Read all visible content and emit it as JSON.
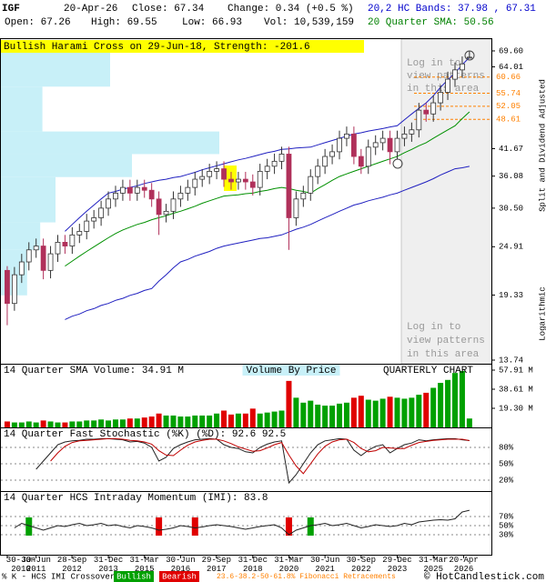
{
  "header": {
    "symbol": "IGF",
    "date": "20-Apr-26",
    "close": "Close: 67.34",
    "change": "Change: 0.34 (+0.5 %)",
    "bands": "20,2 HC Bands: 37.98 , 67.31",
    "open": "Open: 67.26",
    "high": "High: 69.55",
    "low": "Low: 66.93",
    "volume": "Vol: 10,539,159",
    "sma": "20 Quarter SMA: 50.56"
  },
  "chart_data": [
    {
      "type": "candlestick",
      "annotation": "Bullish Harami Cross on 29-Jun-18, Strength: -201.6",
      "notes": [
        "Split and Dividend Adjusted",
        "Logarithmic"
      ],
      "overlay_text": [
        "Log in to",
        "view patterns",
        "in this area"
      ],
      "log_scale": true,
      "xlim": [
        2010.25,
        2027.26
      ],
      "ylim": [
        13.48,
        74.4
      ],
      "yticks": [
        {
          "value": 69.6,
          "label": "69.60"
        },
        64.01,
        41.67,
        36.08,
        {
          "value": 30.5,
          "label": "30.50"
        },
        24.91,
        19.33,
        13.74
      ],
      "x": [
        2010.5,
        2010.75,
        2011,
        2011.25,
        2011.5,
        2011.75,
        2012,
        2012.25,
        2012.5,
        2012.75,
        2013,
        2013.25,
        2013.5,
        2013.75,
        2014,
        2014.25,
        2014.5,
        2014.75,
        2015,
        2015.25,
        2015.5,
        2015.75,
        2016,
        2016.25,
        2016.5,
        2016.75,
        2017,
        2017.25,
        2017.5,
        2017.75,
        2018,
        2018.25,
        2018.5,
        2018.75,
        2019,
        2019.25,
        2019.5,
        2019.75,
        2020,
        2020.25,
        2020.5,
        2020.75,
        2021,
        2021.25,
        2021.5,
        2021.75,
        2022,
        2022.25,
        2022.5,
        2022.75,
        2023,
        2023.25,
        2023.5,
        2023.75,
        2024,
        2024.25,
        2024.5,
        2024.75,
        2025,
        2025.25,
        2025.5,
        2025.75,
        2026,
        2026.25,
        2026.5
      ],
      "open": [
        22,
        18.5,
        21.5,
        23,
        24.5,
        25,
        22,
        24,
        25.5,
        25,
        26.5,
        27,
        28.5,
        29,
        30.5,
        32,
        33,
        34,
        33,
        34,
        33.5,
        32,
        29.5,
        30,
        32,
        33,
        34,
        35.5,
        36,
        37,
        37.5,
        35.5,
        35,
        35.5,
        35,
        34,
        37,
        38,
        39,
        40.5,
        29,
        32,
        33,
        36,
        38,
        40,
        41,
        44,
        45,
        40,
        38,
        42,
        43,
        44,
        41,
        44,
        45,
        46,
        51,
        50,
        53,
        56,
        60,
        63,
        67.26
      ],
      "high": [
        22.5,
        22.4,
        24,
        25.5,
        26,
        26,
        25,
        26.5,
        26.5,
        27.6,
        28.1,
        29.6,
        30.2,
        31.7,
        33.3,
        34.3,
        35.4,
        35.4,
        35.4,
        35.4,
        34.8,
        33.3,
        31.2,
        33.3,
        34.3,
        35.4,
        36.9,
        37.4,
        38.5,
        39,
        39,
        36.9,
        36.9,
        36.9,
        36.4,
        38.5,
        39.5,
        40.6,
        42.1,
        42.1,
        33.3,
        34.3,
        37.4,
        39.5,
        41.6,
        42.6,
        45.8,
        46.8,
        46.8,
        41.6,
        43.7,
        44.7,
        45.8,
        45.8,
        45.8,
        46.8,
        47.8,
        53,
        53,
        55.1,
        58.2,
        62.4,
        65.5,
        67.6,
        69.55
      ],
      "low": [
        16.5,
        17.8,
        20.6,
        22,
        23.5,
        21,
        21.1,
        23,
        24,
        24,
        25.4,
        25.9,
        27.4,
        27.8,
        29.3,
        30.7,
        31.7,
        31.7,
        31.7,
        32.2,
        30.7,
        26.5,
        28.3,
        28.8,
        30.7,
        31.7,
        32.6,
        34.1,
        34.6,
        35.5,
        34.1,
        33.6,
        33.6,
        33.6,
        32.6,
        32.6,
        35.5,
        36.5,
        37.4,
        24.5,
        27.8,
        30.7,
        31.7,
        34.6,
        36.5,
        38.4,
        39.4,
        42.2,
        38.4,
        36.5,
        36.5,
        40.3,
        41.3,
        38.4,
        39.4,
        42.2,
        43.2,
        44.2,
        48,
        48,
        50.9,
        53.8,
        57.6,
        60.5,
        66.93
      ],
      "close": [
        18.5,
        21.5,
        23,
        24.5,
        25,
        22,
        24,
        25.5,
        25,
        26.5,
        27,
        28.5,
        29,
        30.5,
        32,
        33,
        34,
        33,
        34,
        33.5,
        32,
        29.5,
        30,
        32,
        33,
        34,
        35.5,
        36,
        37,
        37.5,
        35.5,
        35,
        35.5,
        35,
        34,
        37,
        38,
        39,
        40.5,
        29,
        32,
        33,
        36,
        38,
        40,
        41,
        44,
        45,
        40,
        38,
        42,
        43,
        44,
        41,
        44,
        45,
        46,
        51,
        50,
        53,
        56,
        60,
        63,
        65,
        67.34
      ],
      "up_color": "#333333",
      "down_color": "#b0305a",
      "series": [
        {
          "color": "#2020c0",
          "values": [
            null,
            null,
            null,
            null,
            null,
            null,
            null,
            null,
            27,
            28,
            29,
            30,
            31,
            32,
            33,
            33.3,
            33.7,
            34,
            34.3,
            34.7,
            35,
            35.3,
            35.5,
            35.8,
            36,
            36.4,
            36.8,
            37.3,
            37.7,
            38.1,
            38.5,
            38.9,
            39.3,
            39.6,
            40,
            40.4,
            40.8,
            41.1,
            41.5,
            41.6,
            41.8,
            41.9,
            42,
            42.5,
            43,
            43.5,
            44,
            44.5,
            45,
            45.3,
            45.7,
            46,
            46.3,
            46.7,
            47,
            48.5,
            50,
            51.5,
            53,
            55,
            57.5,
            59.8,
            62,
            64.7,
            67.31
          ]
        },
        {
          "color": "#2020c0",
          "values": [
            null,
            null,
            null,
            null,
            null,
            null,
            null,
            null,
            17,
            17.3,
            17.5,
            17.8,
            18,
            18.3,
            18.5,
            18.8,
            19,
            19.3,
            19.5,
            19.8,
            20,
            20.8,
            21.5,
            22.3,
            23,
            23.3,
            23.7,
            24,
            24.3,
            24.7,
            25,
            25.2,
            25.4,
            25.6,
            25.8,
            26,
            26.1,
            26.3,
            26.5,
            26.9,
            27.3,
            27.6,
            28,
            28.5,
            29,
            29.5,
            30,
            30.5,
            31,
            31.3,
            31.7,
            32,
            32.3,
            32.7,
            33,
            33.5,
            34,
            34.5,
            35,
            35.6,
            36.3,
            36.9,
            37.5,
            37.7,
            37.98
          ]
        },
        {
          "color": "#009000",
          "values": [
            null,
            null,
            null,
            null,
            null,
            null,
            null,
            null,
            22.5,
            23.1,
            23.7,
            24.3,
            24.9,
            25.5,
            26.1,
            26.7,
            27.2,
            27.6,
            28,
            28.3,
            28.7,
            29,
            29.3,
            29.7,
            30,
            30.4,
            30.8,
            31.3,
            31.7,
            32.1,
            32.5,
            32.6,
            32.7,
            32.9,
            33,
            33.3,
            33.5,
            33.8,
            34,
            33.8,
            33.5,
            33.3,
            33,
            33.8,
            34.5,
            35.3,
            36,
            36.5,
            37,
            37.5,
            38,
            38.5,
            39,
            39.5,
            40,
            40.8,
            41.5,
            42.3,
            43,
            44,
            45,
            46,
            47,
            48.8,
            50.56
          ]
        }
      ],
      "volume_by_price": {
        "label": "Volume By Price",
        "color": "#c8f0f8",
        "price_edges": [
          73.7,
          57.7,
          45.6,
          40.5,
          35.9,
          28.3,
          24.5,
          19.3
        ],
        "values": [
          50,
          19,
          100,
          60,
          25,
          18,
          12
        ]
      },
      "fib_levels": [
        60.66,
        55.74,
        52.05,
        48.61
      ],
      "fib_color": "#ff8000"
    },
    {
      "type": "bar",
      "title": "14 Quarter SMA Volume: 34.91 M",
      "annotation": "QUARTERLY CHART",
      "ylim": [
        0,
        62.5
      ],
      "yticks": [
        {
          "value": 57.91,
          "label": "57.91 M"
        },
        {
          "value": 38.61,
          "label": "38.61 M"
        },
        {
          "value": 19.3,
          "label": "19.30 M"
        }
      ],
      "up_color": "#00a000",
      "down_color": "#e00000",
      "values": [
        6,
        5,
        5,
        6,
        5,
        7,
        6,
        5,
        5,
        6,
        6,
        7,
        7,
        8,
        7,
        8,
        8,
        9,
        9,
        10,
        11,
        14,
        12,
        12,
        11,
        11,
        12,
        12,
        12,
        14,
        17,
        13,
        14,
        14,
        19,
        14,
        15,
        16,
        17,
        47,
        30,
        25,
        27,
        23,
        22,
        22,
        24,
        25,
        30,
        32,
        28,
        27,
        29,
        31,
        30,
        29,
        30,
        33,
        35,
        40,
        45,
        48,
        55,
        57,
        9
      ]
    },
    {
      "type": "line",
      "title": "14 Quarter Fast Stochastic (%K) (%D): 92.6 92.5",
      "ylim": [
        0,
        116.7
      ],
      "yticks": [
        {
          "value": 80,
          "label": "80%"
        },
        {
          "value": 50,
          "label": "50%"
        },
        {
          "value": 20,
          "label": "20%"
        }
      ],
      "series": [
        {
          "color": "#222222",
          "values": [
            null,
            null,
            null,
            null,
            40,
            55,
            70,
            85,
            90,
            92,
            93,
            95,
            95,
            96,
            96,
            95,
            94,
            90,
            91,
            88,
            80,
            55,
            62,
            78,
            85,
            90,
            94,
            95,
            96,
            95,
            85,
            80,
            78,
            72,
            70,
            80,
            86,
            90,
            92,
            15,
            30,
            50,
            70,
            85,
            92,
            94,
            96,
            95,
            75,
            65,
            75,
            82,
            85,
            70,
            78,
            85,
            88,
            94,
            92,
            94,
            95,
            96,
            96,
            94,
            92.6
          ]
        },
        {
          "color": "#c00000",
          "values": [
            null,
            null,
            null,
            null,
            null,
            null,
            55,
            70,
            82,
            89,
            92,
            93,
            94,
            95,
            96,
            96,
            95,
            93,
            92,
            90,
            86,
            74,
            66,
            65,
            75,
            84,
            90,
            93,
            95,
            95,
            92,
            87,
            81,
            77,
            73,
            74,
            79,
            85,
            89,
            66,
            46,
            32,
            50,
            68,
            82,
            90,
            94,
            95,
            89,
            78,
            72,
            74,
            80,
            79,
            78,
            78,
            84,
            89,
            91,
            93,
            94,
            95,
            95,
            95,
            92.5
          ]
        }
      ]
    },
    {
      "type": "line",
      "title": "14 Quarter HCS Intraday Momentum (IMI): 83.8",
      "ylim": [
        -14,
        126
      ],
      "yticks": [
        {
          "value": 70,
          "label": "70%"
        },
        {
          "value": 50,
          "label": "50%"
        },
        {
          "value": 30,
          "label": "30%"
        }
      ],
      "color": "#222222",
      "values": [
        null,
        45,
        55,
        50,
        45,
        40,
        45,
        50,
        48,
        52,
        55,
        50,
        52,
        55,
        50,
        52,
        48,
        45,
        50,
        48,
        45,
        40,
        42,
        45,
        50,
        48,
        45,
        47,
        50,
        52,
        50,
        48,
        45,
        42,
        45,
        48,
        50,
        52,
        45,
        30,
        40,
        45,
        50,
        52,
        55,
        50,
        52,
        55,
        50,
        45,
        48,
        52,
        50,
        48,
        50,
        55,
        52,
        58,
        60,
        62,
        63,
        62,
        65,
        80,
        83.8
      ],
      "signals": [
        {
          "name": "Bullish",
          "color": "#00a000",
          "x": [
            2011.25,
            2021
          ]
        },
        {
          "name": "Bearish",
          "color": "#e00000",
          "x": [
            2015.75,
            2017,
            2020.25
          ]
        }
      ],
      "xticks": [
        {
          "value": 2010.5,
          "label": "30-Jun 2010"
        },
        {
          "value": 2011.5,
          "label": "30-Jun 2011"
        },
        {
          "value": 2012.74,
          "label": "28-Sep 2012"
        },
        {
          "value": 2014,
          "label": "31-Dec 2013"
        },
        {
          "value": 2015.25,
          "label": "31-Mar 2015"
        },
        {
          "value": 2016.5,
          "label": "30-Jun 2016"
        },
        {
          "value": 2017.74,
          "label": "29-Sep 2017"
        },
        {
          "value": 2019,
          "label": "31-Dec 2018"
        },
        {
          "value": 2020.25,
          "label": "31-Mar 2020"
        },
        {
          "value": 2021.5,
          "label": "30-Jun 2021"
        },
        {
          "value": 2022.75,
          "label": "30-Sep 2022"
        },
        {
          "value": 2024,
          "label": "29-Dec 2023"
        },
        {
          "value": 2025.25,
          "label": "31-Mar 2025"
        },
        {
          "value": 2026.3,
          "label": "20-Apr 2026"
        }
      ]
    }
  ],
  "footer": {
    "legend_prefix": "% K - HCS IMI Crossover,",
    "fib_note": "23.6-38.2-50-61.8% Fibonacci Retracements",
    "credit": "© HotCandlestick.com"
  }
}
